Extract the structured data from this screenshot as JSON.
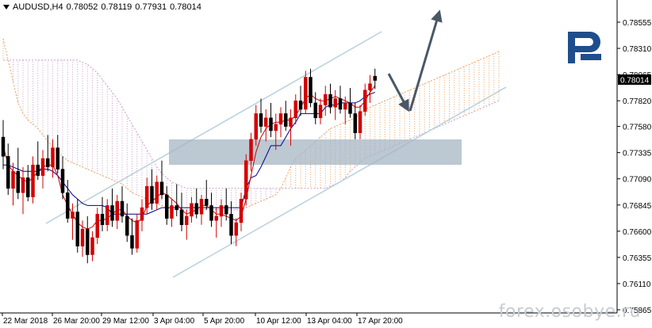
{
  "header": {
    "symbol": "AUDUSD,H4",
    "open": "0.78052",
    "high": "0.78119",
    "low": "0.77931",
    "close": "0.78014"
  },
  "watermark": "forex.osobye.ru",
  "colors": {
    "bull": "#d40000",
    "bear": "#000000",
    "tenkan": "#cc0000",
    "kijun": "#00008b",
    "senkou_a": "#e8a060",
    "senkou_b": "#c8a0c8",
    "channel": "#b9d0dc",
    "zone": "#a6b5c3",
    "arrow": "#4a5866",
    "logo": "#1f4e8c",
    "price_tag_bg": "#000000",
    "price_tag_fg": "#ffffff"
  },
  "chart_data": {
    "type": "candlestick",
    "instrument": "AUDUSD",
    "timeframe": "H4",
    "y_ticks": [
      "0.78555",
      "0.78310",
      "0.78065",
      "0.77820",
      "0.77580",
      "0.77335",
      "0.77090",
      "0.76845",
      "0.76600",
      "0.76355",
      "0.76110",
      "0.75865"
    ],
    "ylim": [
      0.75865,
      0.78555
    ],
    "current_price": "0.78014",
    "x_ticks": [
      "22 Mar 2018",
      "26 Mar 20:00",
      "29 Mar 12:00",
      "3 Apr 04:00",
      "5 Apr 20:00",
      "10 Apr 12:00",
      "13 Apr 04:00",
      "17 Apr 20:00"
    ],
    "candles": [
      [
        0.7748,
        0.7764,
        0.7718,
        0.773
      ],
      [
        0.773,
        0.7742,
        0.7694,
        0.77
      ],
      [
        0.77,
        0.7724,
        0.7684,
        0.7716
      ],
      [
        0.7716,
        0.7738,
        0.769,
        0.7696
      ],
      [
        0.7696,
        0.772,
        0.7676,
        0.771
      ],
      [
        0.771,
        0.7722,
        0.7688,
        0.7692
      ],
      [
        0.7692,
        0.773,
        0.7686,
        0.7722
      ],
      [
        0.7722,
        0.7744,
        0.7708,
        0.7712
      ],
      [
        0.7712,
        0.7736,
        0.77,
        0.7728
      ],
      [
        0.7728,
        0.775,
        0.7716,
        0.772
      ],
      [
        0.772,
        0.7746,
        0.771,
        0.7738
      ],
      [
        0.7738,
        0.775,
        0.7714,
        0.7718
      ],
      [
        0.7718,
        0.773,
        0.769,
        0.7696
      ],
      [
        0.7696,
        0.7708,
        0.7668,
        0.7672
      ],
      [
        0.7672,
        0.7686,
        0.7652,
        0.7678
      ],
      [
        0.7678,
        0.769,
        0.764,
        0.7646
      ],
      [
        0.7646,
        0.767,
        0.7636,
        0.7662
      ],
      [
        0.7662,
        0.7674,
        0.763,
        0.7638
      ],
      [
        0.7638,
        0.766,
        0.7632,
        0.7654
      ],
      [
        0.7654,
        0.7682,
        0.7648,
        0.7676
      ],
      [
        0.7676,
        0.7692,
        0.766,
        0.7666
      ],
      [
        0.7666,
        0.769,
        0.766,
        0.7684
      ],
      [
        0.7684,
        0.77,
        0.7664,
        0.767
      ],
      [
        0.767,
        0.7694,
        0.7662,
        0.7688
      ],
      [
        0.7688,
        0.7702,
        0.7668,
        0.7674
      ],
      [
        0.7674,
        0.7686,
        0.765,
        0.7656
      ],
      [
        0.7656,
        0.7672,
        0.7638,
        0.7644
      ],
      [
        0.7644,
        0.7676,
        0.764,
        0.767
      ],
      [
        0.767,
        0.769,
        0.766,
        0.7682
      ],
      [
        0.7682,
        0.771,
        0.7676,
        0.7702
      ],
      [
        0.7702,
        0.7718,
        0.768,
        0.7686
      ],
      [
        0.7686,
        0.7712,
        0.768,
        0.7706
      ],
      [
        0.7706,
        0.7726,
        0.769,
        0.7694
      ],
      [
        0.7694,
        0.7702,
        0.7666,
        0.7672
      ],
      [
        0.7672,
        0.769,
        0.7664,
        0.7684
      ],
      [
        0.7684,
        0.7704,
        0.7674,
        0.768
      ],
      [
        0.768,
        0.7696,
        0.766,
        0.7666
      ],
      [
        0.7666,
        0.768,
        0.7652,
        0.7674
      ],
      [
        0.7674,
        0.7692,
        0.7668,
        0.7686
      ],
      [
        0.7686,
        0.77,
        0.7672,
        0.7676
      ],
      [
        0.7676,
        0.7694,
        0.7666,
        0.769
      ],
      [
        0.769,
        0.7708,
        0.768,
        0.7684
      ],
      [
        0.7684,
        0.7696,
        0.7664,
        0.767
      ],
      [
        0.767,
        0.7682,
        0.7654,
        0.7674
      ],
      [
        0.7674,
        0.769,
        0.7664,
        0.7684
      ],
      [
        0.7684,
        0.77,
        0.767,
        0.7676
      ],
      [
        0.7676,
        0.7688,
        0.7648,
        0.7656
      ],
      [
        0.7656,
        0.7672,
        0.7646,
        0.7668
      ],
      [
        0.7668,
        0.7696,
        0.766,
        0.769
      ],
      [
        0.769,
        0.7732,
        0.7684,
        0.7726
      ],
      [
        0.7726,
        0.7752,
        0.7716,
        0.7746
      ],
      [
        0.7746,
        0.7778,
        0.774,
        0.777
      ],
      [
        0.777,
        0.7784,
        0.7752,
        0.7758
      ],
      [
        0.7758,
        0.7774,
        0.7744,
        0.7766
      ],
      [
        0.7766,
        0.778,
        0.7748,
        0.7754
      ],
      [
        0.7754,
        0.777,
        0.7736,
        0.776
      ],
      [
        0.776,
        0.7776,
        0.7748,
        0.777
      ],
      [
        0.777,
        0.7782,
        0.7754,
        0.7758
      ],
      [
        0.7758,
        0.7774,
        0.774,
        0.7766
      ],
      [
        0.7766,
        0.7788,
        0.776,
        0.7782
      ],
      [
        0.7782,
        0.7796,
        0.7768,
        0.7774
      ],
      [
        0.7774,
        0.781,
        0.777,
        0.7804
      ],
      [
        0.7804,
        0.7812,
        0.7776,
        0.778
      ],
      [
        0.778,
        0.779,
        0.776,
        0.7766
      ],
      [
        0.7766,
        0.7784,
        0.776,
        0.7778
      ],
      [
        0.7778,
        0.7796,
        0.7768,
        0.7788
      ],
      [
        0.7788,
        0.7798,
        0.777,
        0.7776
      ],
      [
        0.7776,
        0.7792,
        0.7764,
        0.7784
      ],
      [
        0.7784,
        0.7796,
        0.777,
        0.7774
      ],
      [
        0.7774,
        0.7786,
        0.776,
        0.778
      ],
      [
        0.778,
        0.7794,
        0.7766,
        0.777
      ],
      [
        0.777,
        0.778,
        0.7746,
        0.7752
      ],
      [
        0.7752,
        0.7778,
        0.7746,
        0.7772
      ],
      [
        0.7772,
        0.7798,
        0.7768,
        0.7792
      ],
      [
        0.7792,
        0.7806,
        0.778,
        0.7798
      ],
      [
        0.7805,
        0.7812,
        0.7793,
        0.7801
      ]
    ],
    "tenkan_sen": [
      0.774,
      0.7722,
      0.7716,
      0.7712,
      0.7708,
      0.7706,
      0.771,
      0.7716,
      0.772,
      0.7722,
      0.7722,
      0.7712,
      0.7694,
      0.7684,
      0.7676,
      0.7668,
      0.7664,
      0.7662,
      0.7664,
      0.767,
      0.767,
      0.7672,
      0.7676,
      0.768,
      0.768,
      0.7674,
      0.767,
      0.7668,
      0.7672,
      0.7684,
      0.7688,
      0.7692,
      0.7696,
      0.7694,
      0.769,
      0.7686,
      0.768,
      0.7676,
      0.7678,
      0.768,
      0.7684,
      0.7684,
      0.768,
      0.7676,
      0.7676,
      0.7674,
      0.7672,
      0.767,
      0.7674,
      0.769,
      0.7712,
      0.7734,
      0.7748,
      0.7756,
      0.776,
      0.7762,
      0.7762,
      0.7764,
      0.7764,
      0.7768,
      0.7776,
      0.7784,
      0.7788,
      0.7784,
      0.7782,
      0.7782,
      0.7784,
      0.7786,
      0.7784,
      0.7782,
      0.778,
      0.7776,
      0.7776,
      0.7782,
      0.779,
      0.7796
    ],
    "kijun_sen": [
      0.7722,
      0.7722,
      0.772,
      0.7718,
      0.7716,
      0.7716,
      0.7716,
      0.7716,
      0.7718,
      0.7718,
      0.7716,
      0.7712,
      0.7706,
      0.77,
      0.7694,
      0.769,
      0.7686,
      0.7684,
      0.7684,
      0.7684,
      0.7684,
      0.7682,
      0.7676,
      0.7676,
      0.7676,
      0.7676,
      0.7676,
      0.7676,
      0.7676,
      0.7676,
      0.7678,
      0.768,
      0.7682,
      0.7682,
      0.7682,
      0.7682,
      0.7682,
      0.7682,
      0.7682,
      0.7682,
      0.7682,
      0.7682,
      0.7682,
      0.7682,
      0.7682,
      0.7682,
      0.7682,
      0.7682,
      0.7682,
      0.77,
      0.771,
      0.7712,
      0.772,
      0.773,
      0.774,
      0.774,
      0.774,
      0.7748,
      0.7756,
      0.7762,
      0.777,
      0.777,
      0.777,
      0.777,
      0.777,
      0.7776,
      0.7778,
      0.7778,
      0.778,
      0.778,
      0.778,
      0.778,
      0.7782,
      0.7786,
      0.7788,
      0.779
    ],
    "senkou_span_a": [
      0.784,
      0.782,
      0.78,
      0.778,
      0.777,
      0.7764,
      0.776,
      0.7756,
      0.775,
      0.7744,
      0.7738,
      0.7734,
      0.773,
      0.7726,
      0.7724,
      0.7722,
      0.772,
      0.7718,
      0.7716,
      0.7714,
      0.7712,
      0.771,
      0.7708,
      0.7706,
      0.7704,
      0.77,
      0.7696,
      0.7694,
      0.7692,
      0.769,
      0.7688,
      0.7686,
      0.7684,
      0.7682,
      0.768,
      0.768,
      0.768,
      0.768,
      0.768,
      0.768,
      0.768,
      0.768,
      0.768,
      0.768,
      0.768,
      0.768,
      0.768,
      0.768,
      0.768,
      0.7682,
      0.7684,
      0.7686,
      0.7688,
      0.769,
      0.7692,
      0.7694,
      0.77,
      0.771,
      0.772,
      0.7728,
      0.7732,
      0.7736,
      0.774,
      0.7744,
      0.7748,
      0.7752,
      0.7756,
      0.7758,
      0.776,
      0.7762,
      0.7764,
      0.7766,
      0.777,
      0.7774,
      0.7776,
      0.7778,
      0.778,
      0.7782,
      0.7784,
      0.7786,
      0.7788,
      0.779,
      0.7792,
      0.7794,
      0.7796,
      0.7798,
      0.78,
      0.7802,
      0.7804,
      0.7806,
      0.7808,
      0.781,
      0.7812,
      0.7814,
      0.7816,
      0.7818,
      0.782,
      0.7822,
      0.7824,
      0.7826,
      0.7828
    ],
    "senkou_span_b": [
      0.782,
      0.782,
      0.782,
      0.782,
      0.782,
      0.782,
      0.782,
      0.782,
      0.782,
      0.782,
      0.782,
      0.782,
      0.782,
      0.782,
      0.782,
      0.782,
      0.7818,
      0.7816,
      0.7812,
      0.7808,
      0.7802,
      0.7796,
      0.779,
      0.7784,
      0.7776,
      0.7768,
      0.776,
      0.7752,
      0.7744,
      0.7736,
      0.7728,
      0.772,
      0.7714,
      0.771,
      0.7706,
      0.7704,
      0.7702,
      0.77,
      0.77,
      0.77,
      0.77,
      0.77,
      0.77,
      0.77,
      0.77,
      0.77,
      0.77,
      0.77,
      0.77,
      0.77,
      0.77,
      0.77,
      0.77,
      0.77,
      0.77,
      0.77,
      0.77,
      0.77,
      0.77,
      0.77,
      0.77,
      0.77,
      0.77,
      0.77,
      0.77,
      0.77,
      0.7702,
      0.7704,
      0.7706,
      0.771,
      0.7716,
      0.772,
      0.7724,
      0.7728,
      0.773,
      0.7732,
      0.7734,
      0.7736,
      0.7738,
      0.774,
      0.7742,
      0.7744,
      0.7746,
      0.7748,
      0.775,
      0.7752,
      0.7754,
      0.7756,
      0.7758,
      0.776,
      0.7762,
      0.7764,
      0.7766,
      0.7768,
      0.777,
      0.7772,
      0.7774,
      0.7776,
      0.7778,
      0.778,
      0.7782
    ]
  }
}
